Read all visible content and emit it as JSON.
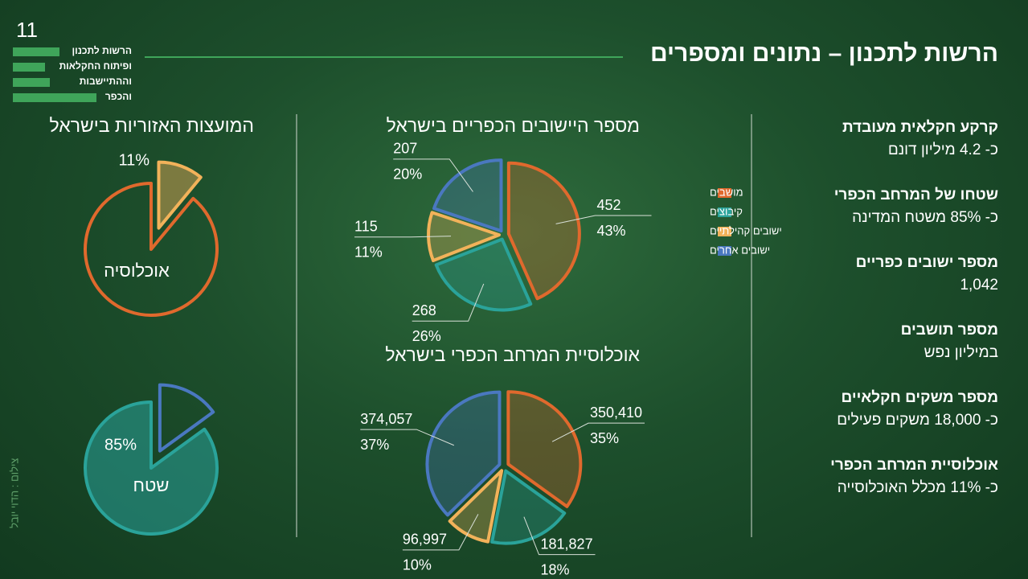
{
  "page_number": "11",
  "logo": [
    "הרשות לתכנון",
    "ופיתוח החקלאות",
    "וההתיישבות",
    "והכפר"
  ],
  "title": "הרשות לתכנון – נתונים ומספרים",
  "photo_credit": "צילום : הדוי יובל",
  "facts": [
    {
      "label": "קרקע חקלאית מעובדת",
      "value": "כ- 4.2 מיליון דונם"
    },
    {
      "label": "שטחו של המרחב הכפרי",
      "value": "כ- 85% משטח המדינה"
    },
    {
      "label": "מספר ישובים כפריים",
      "value": "1,042"
    },
    {
      "label": "מספר תושבים",
      "value": "במיליון נפש"
    },
    {
      "label": "מספר משקים חקלאיים",
      "value": "כ- 18,000 משקים פעילים"
    },
    {
      "label": "אוכלוסיית המרחב הכפרי",
      "value": "כ- 11% מכלל האוכלוסייה"
    }
  ],
  "chart_data": [
    {
      "type": "pie",
      "title": "המועצות האזוריות בישראל",
      "center_label": "אוכלוסיה",
      "value": 11,
      "value_label": "11%",
      "exploded": "value",
      "color": "#f2b25a",
      "rest_color": "#e0692d"
    },
    {
      "type": "pie",
      "center_label": "שטח",
      "value": 85,
      "value_label": "85%",
      "exploded": "rest",
      "color": "#2aa39a",
      "rest_color": "#4a78c0"
    },
    {
      "type": "pie",
      "title": "מספר היישובים הכפריים בישראל",
      "categories": [
        "מושבים",
        "קיבוצים",
        "ישובים קהילתיים",
        "ישובים אחרים"
      ],
      "values": [
        452,
        268,
        115,
        207
      ],
      "percent_labels": [
        "43%",
        "26%",
        "11%",
        "20%"
      ],
      "colors": [
        "#e0692d",
        "#2aa39a",
        "#f2b25a",
        "#4a78c0"
      ],
      "legend": "right"
    },
    {
      "type": "pie",
      "title": "אוכלוסיית המרחב הכפרי בישראל",
      "values": [
        350410,
        181827,
        96997,
        374057
      ],
      "value_labels": [
        "350,410",
        "181,827",
        "96,997",
        "374,057"
      ],
      "percent_labels": [
        "35%",
        "18%",
        "10%",
        "37%"
      ],
      "colors": [
        "#e0692d",
        "#2aa39a",
        "#f2b25a",
        "#4a78c0"
      ]
    }
  ]
}
